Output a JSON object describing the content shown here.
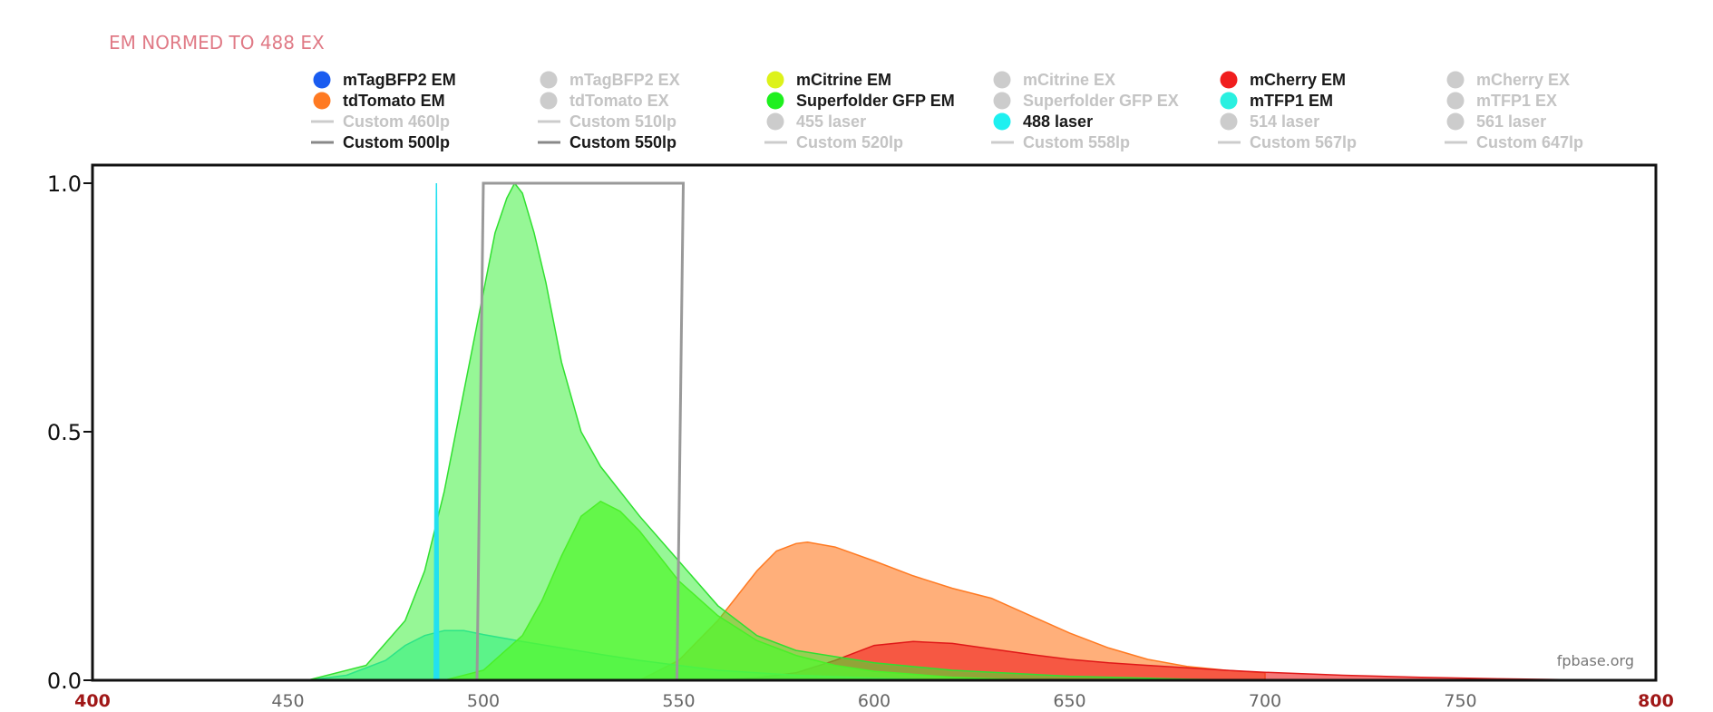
{
  "chart_data": {
    "type": "area",
    "title": "EM NORMED TO 488 EX",
    "credit": "fpbase.org",
    "xlabel": "",
    "ylabel": "",
    "xlim": [
      400,
      800
    ],
    "ylim": [
      0,
      1.0
    ],
    "x_ticks": [
      "400",
      "450",
      "500",
      "550",
      "600",
      "650",
      "700",
      "750",
      "800"
    ],
    "y_ticks": [
      "0.0",
      "0.5",
      "1.0"
    ],
    "end_tick_color": "#a01818",
    "legend_placement": "top",
    "legend": [
      {
        "label": "mTagBFP2 EM",
        "color": "#1a5cf0",
        "kind": "dot",
        "active": true
      },
      {
        "label": "mTagBFP2 EX",
        "color": "#cccccc",
        "kind": "dot",
        "active": false
      },
      {
        "label": "mCitrine EM",
        "color": "#ddf21a",
        "kind": "dot",
        "active": true
      },
      {
        "label": "mCitrine EX",
        "color": "#cccccc",
        "kind": "dot",
        "active": false
      },
      {
        "label": "mCherry EM",
        "color": "#f01e1e",
        "kind": "dot",
        "active": true
      },
      {
        "label": "mCherry EX",
        "color": "#cccccc",
        "kind": "dot",
        "active": false
      },
      {
        "label": "tdTomato EM",
        "color": "#ff7a22",
        "kind": "dot",
        "active": true
      },
      {
        "label": "tdTomato EX",
        "color": "#cccccc",
        "kind": "dot",
        "active": false
      },
      {
        "label": "Superfolder GFP EM",
        "color": "#1ef01e",
        "kind": "dot",
        "active": true
      },
      {
        "label": "Superfolder GFP EX",
        "color": "#cccccc",
        "kind": "dot",
        "active": false
      },
      {
        "label": "mTFP1 EM",
        "color": "#2af0e0",
        "kind": "dot",
        "active": true
      },
      {
        "label": "mTFP1 EX",
        "color": "#cccccc",
        "kind": "dot",
        "active": false
      },
      {
        "label": "Custom 460lp",
        "color": "#cccccc",
        "kind": "line",
        "active": false
      },
      {
        "label": "Custom 510lp",
        "color": "#cccccc",
        "kind": "line",
        "active": false
      },
      {
        "label": "455 laser",
        "color": "#cccccc",
        "kind": "dot",
        "active": false
      },
      {
        "label": "488 laser",
        "color": "#1ef0f0",
        "kind": "dot",
        "active": true
      },
      {
        "label": "514 laser",
        "color": "#cccccc",
        "kind": "dot",
        "active": false
      },
      {
        "label": "561 laser",
        "color": "#cccccc",
        "kind": "dot",
        "active": false
      },
      {
        "label": "Custom 500lp",
        "color": "#888888",
        "kind": "line",
        "active": true
      },
      {
        "label": "Custom 550lp",
        "color": "#888888",
        "kind": "line",
        "active": true
      },
      {
        "label": "Custom 520lp",
        "color": "#cccccc",
        "kind": "line",
        "active": false
      },
      {
        "label": "Custom 558lp",
        "color": "#cccccc",
        "kind": "line",
        "active": false
      },
      {
        "label": "Custom 567lp",
        "color": "#cccccc",
        "kind": "line",
        "active": false
      },
      {
        "label": "Custom 647lp",
        "color": "#cccccc",
        "kind": "line",
        "active": false
      }
    ],
    "series": [
      {
        "name": "tdTomato EM",
        "color": "#ff7a22",
        "fill_opacity": 0.6,
        "stroke": "#ff7a22",
        "x": [
          540,
          550,
          560,
          570,
          575,
          580,
          583,
          590,
          600,
          610,
          620,
          630,
          640,
          650,
          660,
          670,
          680,
          690,
          700
        ],
        "y": [
          0.0,
          0.04,
          0.12,
          0.22,
          0.26,
          0.275,
          0.278,
          0.268,
          0.24,
          0.21,
          0.185,
          0.165,
          0.13,
          0.095,
          0.065,
          0.042,
          0.028,
          0.02,
          0.015
        ]
      },
      {
        "name": "mCherry EM",
        "color": "#f01e1e",
        "fill_opacity": 0.6,
        "stroke": "#e01818",
        "x": [
          560,
          570,
          580,
          590,
          600,
          610,
          620,
          630,
          640,
          650,
          660,
          670,
          680,
          690,
          700,
          720,
          740,
          760,
          780,
          800
        ],
        "y": [
          0.0,
          0.005,
          0.015,
          0.04,
          0.07,
          0.078,
          0.074,
          0.063,
          0.052,
          0.042,
          0.035,
          0.03,
          0.025,
          0.02,
          0.016,
          0.01,
          0.006,
          0.003,
          0.001,
          0.0
        ]
      },
      {
        "name": "mTFP1 EM",
        "color": "#2af0d0",
        "fill_opacity": 0.55,
        "stroke": "#2ad8e0",
        "x": [
          455,
          465,
          475,
          480,
          485,
          490,
          495,
          500,
          510,
          520,
          530,
          540,
          550,
          560,
          580,
          600,
          620
        ],
        "y": [
          0.0,
          0.01,
          0.04,
          0.07,
          0.09,
          0.1,
          0.1,
          0.092,
          0.078,
          0.065,
          0.052,
          0.04,
          0.03,
          0.02,
          0.01,
          0.004,
          0.0
        ]
      },
      {
        "name": "mCitrine EM",
        "color": "#7aff33",
        "fill_opacity": 0.75,
        "stroke": "#66ee22",
        "x": [
          490,
          500,
          510,
          515,
          520,
          525,
          530,
          535,
          540,
          545,
          550,
          560,
          570,
          580,
          590,
          600,
          620,
          640
        ],
        "y": [
          0.0,
          0.02,
          0.09,
          0.16,
          0.25,
          0.33,
          0.36,
          0.34,
          0.3,
          0.25,
          0.2,
          0.13,
          0.08,
          0.05,
          0.03,
          0.018,
          0.006,
          0.0
        ]
      },
      {
        "name": "Superfolder GFP EM",
        "color": "#2ef02e",
        "fill_opacity": 0.5,
        "stroke": "#30e030",
        "x": [
          455,
          470,
          480,
          485,
          490,
          495,
          500,
          503,
          506,
          508,
          510,
          513,
          516,
          520,
          525,
          530,
          540,
          550,
          560,
          570,
          580,
          600,
          620,
          650,
          680,
          700
        ],
        "y": [
          0.0,
          0.03,
          0.12,
          0.22,
          0.38,
          0.58,
          0.78,
          0.9,
          0.97,
          1.0,
          0.98,
          0.9,
          0.8,
          0.64,
          0.5,
          0.43,
          0.33,
          0.24,
          0.15,
          0.09,
          0.06,
          0.035,
          0.02,
          0.008,
          0.002,
          0.0
        ]
      }
    ],
    "lasers": [
      {
        "name": "488 laser",
        "wavelength": 488,
        "color": "#22e0f0",
        "value": 1.0
      }
    ],
    "filters": [
      {
        "name": "Custom 500lp",
        "edge": 500,
        "value": 1.0,
        "color": "#999999"
      },
      {
        "name": "Custom 550lp",
        "edge": 550,
        "value": 1.0,
        "color": "#999999"
      }
    ]
  }
}
